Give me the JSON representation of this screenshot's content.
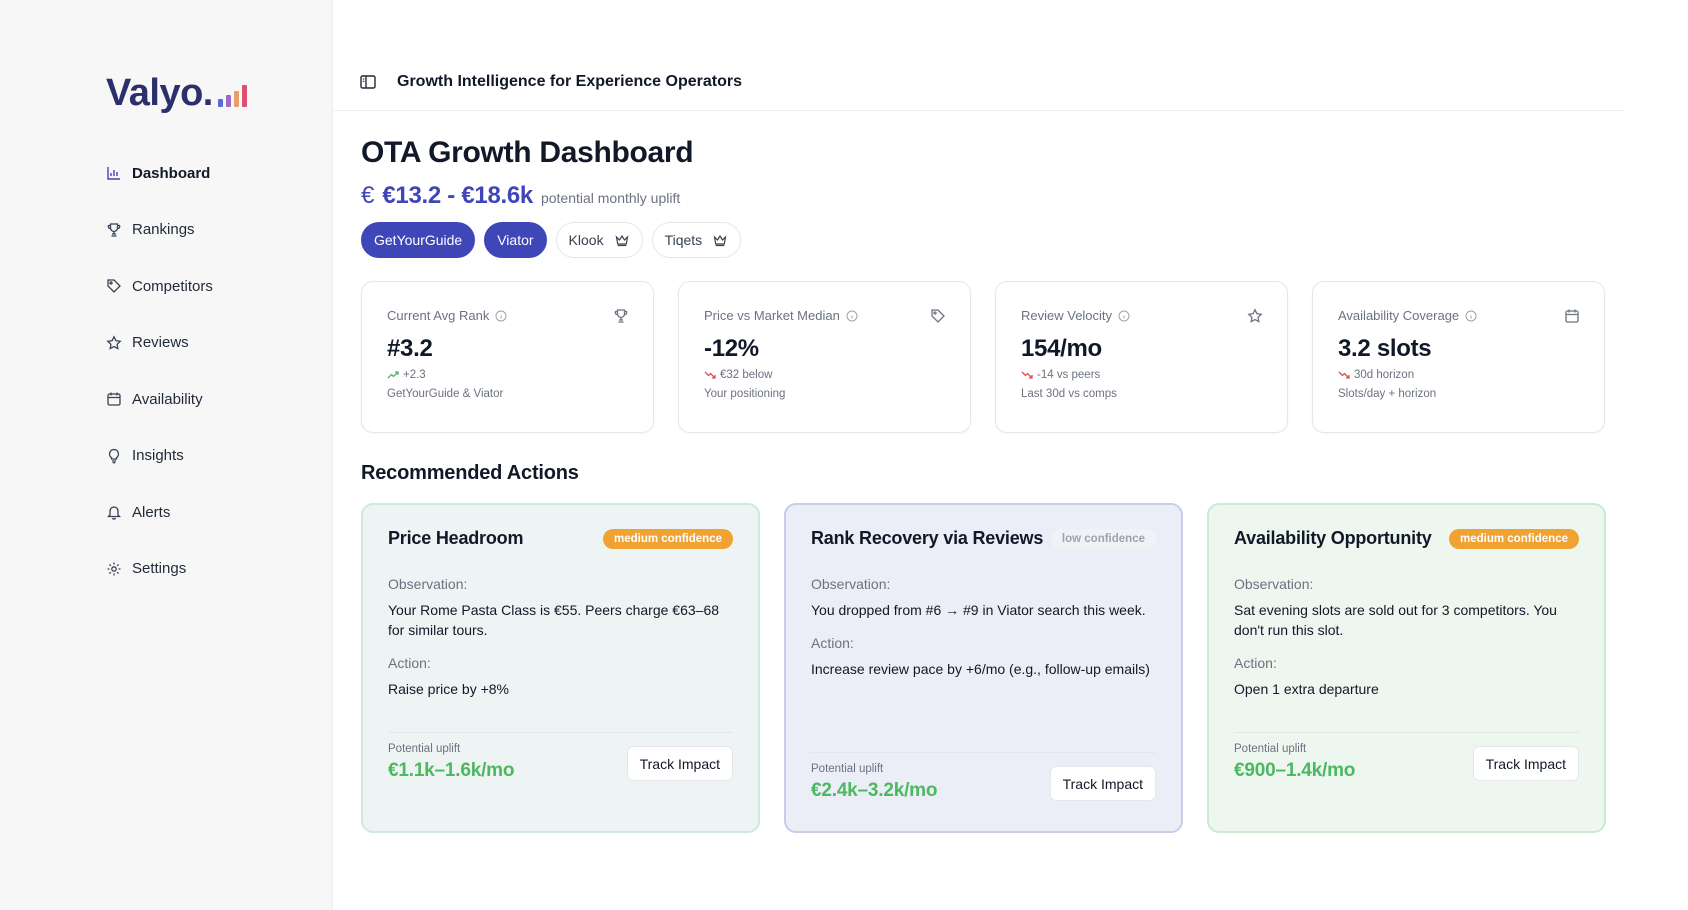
{
  "brand": {
    "name": "Valyo.",
    "bar_colors": [
      "#5b6bd6",
      "#a06ac6",
      "#e8a06a",
      "#e0506e"
    ]
  },
  "sidebar": {
    "items": [
      {
        "label": "Dashboard",
        "icon": "bar-chart-icon",
        "active": true
      },
      {
        "label": "Rankings",
        "icon": "trophy-icon"
      },
      {
        "label": "Competitors",
        "icon": "tag-icon"
      },
      {
        "label": "Reviews",
        "icon": "star-icon"
      },
      {
        "label": "Availability",
        "icon": "calendar-icon"
      },
      {
        "label": "Insights",
        "icon": "lightbulb-icon"
      },
      {
        "label": "Alerts",
        "icon": "bell-icon"
      },
      {
        "label": "Settings",
        "icon": "gear-icon"
      }
    ]
  },
  "header": {
    "title": "Growth Intelligence for Experience Operators",
    "toggle_icon": "sidebar-toggle-icon"
  },
  "main": {
    "title": "OTA Growth Dashboard",
    "uplift": {
      "currency": "€",
      "value": "€13.2 - €18.6k",
      "caption": "potential monthly uplift"
    },
    "platforms": [
      {
        "label": "GetYourGuide",
        "selected": true
      },
      {
        "label": "Viator",
        "selected": true
      },
      {
        "label": "Klook",
        "selected": false,
        "icon": "crown-icon"
      },
      {
        "label": "Tiqets",
        "selected": false,
        "icon": "crown-icon"
      }
    ],
    "kpis": [
      {
        "label": "Current Avg Rank",
        "icon": "trophy-icon",
        "value": "#3.2",
        "trend": "up",
        "delta": "+2.3",
        "sub": "GetYourGuide & Viator"
      },
      {
        "label": "Price vs Market Median",
        "icon": "tag-icon",
        "value": "-12%",
        "trend": "down",
        "delta": "€32 below",
        "sub": "Your positioning"
      },
      {
        "label": "Review Velocity",
        "icon": "star-icon",
        "value": "154/mo",
        "trend": "down",
        "delta": "-14 vs peers",
        "sub": "Last 30d vs comps"
      },
      {
        "label": "Availability Coverage",
        "icon": "calendar-icon",
        "value": "3.2 slots",
        "trend": "down",
        "delta": "30d horizon",
        "sub": "Slots/day + horizon"
      }
    ],
    "section_title": "Recommended Actions",
    "actions": [
      {
        "title": "Price Headroom",
        "confidence": "medium confidence",
        "observation_label": "Observation:",
        "observation": "Your Rome Pasta Class is €55. Peers charge €63–68 for similar tours.",
        "action_label": "Action:",
        "action": "Raise price by +8%",
        "uplift_label": "Potential uplift",
        "uplift": "€1.1k–1.6k/mo",
        "button": "Track Impact"
      },
      {
        "title": "Rank Recovery via Reviews",
        "confidence": "low confidence",
        "observation_label": "Observation:",
        "observation": "You dropped from #6 → #9 in Viator search this week.",
        "action_label": "Action:",
        "action": "Increase review pace by +6/mo (e.g., follow-up emails)",
        "uplift_label": "Potential uplift",
        "uplift": "€2.4k–3.2k/mo",
        "button": "Track Impact"
      },
      {
        "title": "Availability Opportunity",
        "confidence": "medium confidence",
        "observation_label": "Observation:",
        "observation": "Sat evening slots are sold out for 3 competitors. You don't run this slot.",
        "action_label": "Action:",
        "action": "Open 1 extra departure",
        "uplift_label": "Potential uplift",
        "uplift": "€900–1.4k/mo",
        "button": "Track Impact"
      }
    ]
  },
  "colors": {
    "accent": "#3f46b8",
    "uplift_green": "#4cb860",
    "badge_medium": "#f0a233",
    "trend_up": "#4cb860",
    "trend_down": "#e0504a"
  }
}
